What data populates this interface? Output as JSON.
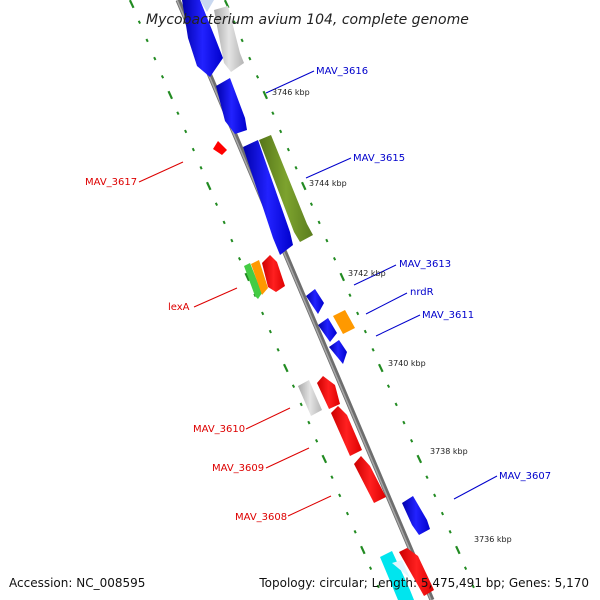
{
  "title": "Mycobacterium avium 104, complete genome",
  "footer": {
    "accession": "Accession: NC_008595",
    "summary": "Topology: circular; Length: 5,475,491 bp; Genes: 5,170"
  },
  "ticks": [
    "3746 kbp",
    "3744 kbp",
    "3742 kbp",
    "3740 kbp",
    "3738 kbp",
    "3736 kbp"
  ],
  "genes": [
    {
      "name": "MAV_3616",
      "strand": "+",
      "color": "#0000ff"
    },
    {
      "name": "MAV_3615",
      "strand": "+",
      "color": "#0000ff"
    },
    {
      "name": "MAV_3613",
      "strand": "+",
      "color": "#0000ff"
    },
    {
      "name": "nrdR",
      "strand": "+",
      "color": "#0000ff"
    },
    {
      "name": "MAV_3611",
      "strand": "+",
      "color": "#0000ff"
    },
    {
      "name": "MAV_3607",
      "strand": "+",
      "color": "#0000ff"
    },
    {
      "name": "MAV_3617",
      "strand": "-",
      "color": "#dd0000"
    },
    {
      "name": "lexA",
      "strand": "-",
      "color": "#dd0000"
    },
    {
      "name": "MAV_3610",
      "strand": "-",
      "color": "#dd0000"
    },
    {
      "name": "MAV_3609",
      "strand": "-",
      "color": "#dd0000"
    },
    {
      "name": "MAV_3608",
      "strand": "-",
      "color": "#dd0000"
    }
  ],
  "colors": {
    "backbone": "#808080",
    "forward": "#0000ff",
    "reverse": "#ff0000",
    "green": "#6b8e23",
    "orange": "#ff9900",
    "gray": "#c8c8c8",
    "cyan": "#00e5ee",
    "ticks": "#228b22"
  }
}
